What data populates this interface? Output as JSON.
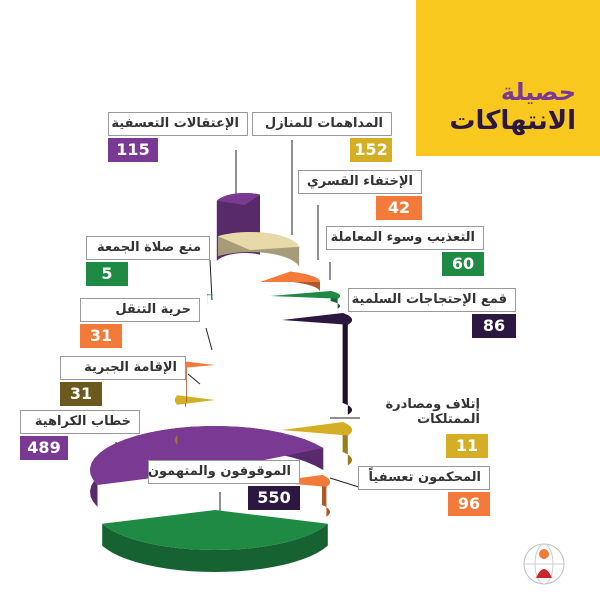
{
  "title": {
    "line1": "حصيلة",
    "line2": "الانتهاكات"
  },
  "colors": {
    "yellow": "#F8C81E",
    "purple": "#7A3A93",
    "dark_purple": "#2B1740",
    "orange": "#F47A3A",
    "green": "#1E8A44",
    "mustard": "#D4AF26",
    "beige": "#E8D9A8",
    "gray_outline": "#9a9a9a"
  },
  "chart_data": {
    "type": "pie",
    "title": "حصيلة الانتهاكات",
    "slices": [
      {
        "label": "الموقوفون والمتهمون",
        "value": 550,
        "color": "#1E8A44"
      },
      {
        "label": "خطاب الكراهية",
        "value": 489,
        "color": "#7A3A93"
      },
      {
        "label": "الإقامة الجبرية",
        "value": 31,
        "color": "#D4AF26"
      },
      {
        "label": "حرية التنقل",
        "value": 31,
        "color": "#F47A3A"
      },
      {
        "label": "منع صلاة الجمعة",
        "value": 5,
        "color": "#1E8A44"
      },
      {
        "label": "الإعتقالات التعسفية",
        "value": 115,
        "color": "#7A3A93"
      },
      {
        "label": "المداهمات للمنازل",
        "value": 152,
        "color": "#E8D9A8"
      },
      {
        "label": "الإختفاء القسري",
        "value": 42,
        "color": "#F47A3A"
      },
      {
        "label": "التعذيب وسوء المعاملة",
        "value": 60,
        "color": "#1E8A44"
      },
      {
        "label": "قمع الإحتجاجات السلمية",
        "value": 86,
        "color": "#2B1740"
      },
      {
        "label": "إتلاف ومصادرة الممتلكات",
        "value": 11,
        "color": "#D4AF26"
      },
      {
        "label": "المحكمون تعسفياً",
        "value": 96,
        "color": "#F47A3A"
      }
    ]
  },
  "labels": {
    "detentions": {
      "text": "الموقوفون والمتهمون",
      "value": "550",
      "color": "#2B1740"
    },
    "hate_speech": {
      "text": "خطاب الكراهية",
      "value": "489",
      "color": "#7A3A93"
    },
    "house_arrest": {
      "text": "الإقامة الجبرية",
      "value": "31",
      "color": "#6B5A1E"
    },
    "movement": {
      "text": "حرية التنقل",
      "value": "31",
      "color": "#F47A3A"
    },
    "friday_prayer": {
      "text": "منع صلاة الجمعة",
      "value": "5",
      "color": "#1E8A44"
    },
    "arbitrary_arrests": {
      "text": "الإعتقالات التعسفية",
      "value": "115",
      "color": "#7A3A93"
    },
    "home_raids": {
      "text": "المداهمات للمنازل",
      "value": "152",
      "color": "#D4AF26"
    },
    "disappearance": {
      "text": "الإختفاء القسري",
      "value": "42",
      "color": "#F47A3A"
    },
    "torture": {
      "text": "التعذيب وسوء المعاملة",
      "value": "60",
      "color": "#1E8A44"
    },
    "protests": {
      "text": "قمع الإحتجاجات السلمية",
      "value": "86",
      "color": "#2B1740"
    },
    "property": {
      "text": "إتلاف ومصادرة الممتلكات",
      "value": "11",
      "color": "#D4AF26"
    },
    "sentenced": {
      "text": "المحكمون تعسفياً",
      "value": "96",
      "color": "#F47A3A"
    }
  }
}
